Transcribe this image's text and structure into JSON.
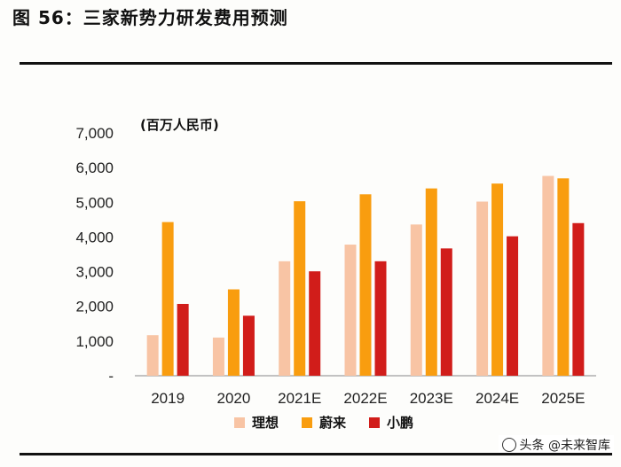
{
  "header": {
    "title": "图 56：三家新势力研发费用预测"
  },
  "watermark": {
    "text": "头条 @未来智库"
  },
  "colors": {
    "理想": "#f8c4a4",
    "蔚来": "#f99d0f",
    "小鹏": "#d11d1a"
  },
  "chart_data": {
    "type": "bar",
    "unit_label": "(百万人民币)",
    "categories": [
      "2019",
      "2020",
      "2021E",
      "2022E",
      "2023E",
      "2024E",
      "2025E"
    ],
    "series": [
      {
        "name": "理想",
        "values": [
          1170,
          1100,
          3300,
          3780,
          4360,
          5020,
          5760
        ]
      },
      {
        "name": "蔚来",
        "values": [
          4430,
          2490,
          5030,
          5230,
          5400,
          5540,
          5690
        ]
      },
      {
        "name": "小鹏",
        "values": [
          2070,
          1730,
          3010,
          3300,
          3670,
          4020,
          4400
        ]
      }
    ],
    "yticks": [
      "-",
      "1,000",
      "2,000",
      "3,000",
      "4,000",
      "5,000",
      "6,000",
      "7,000"
    ],
    "ylim": [
      0,
      7000
    ],
    "grid": false,
    "legend_position": "bottom"
  }
}
